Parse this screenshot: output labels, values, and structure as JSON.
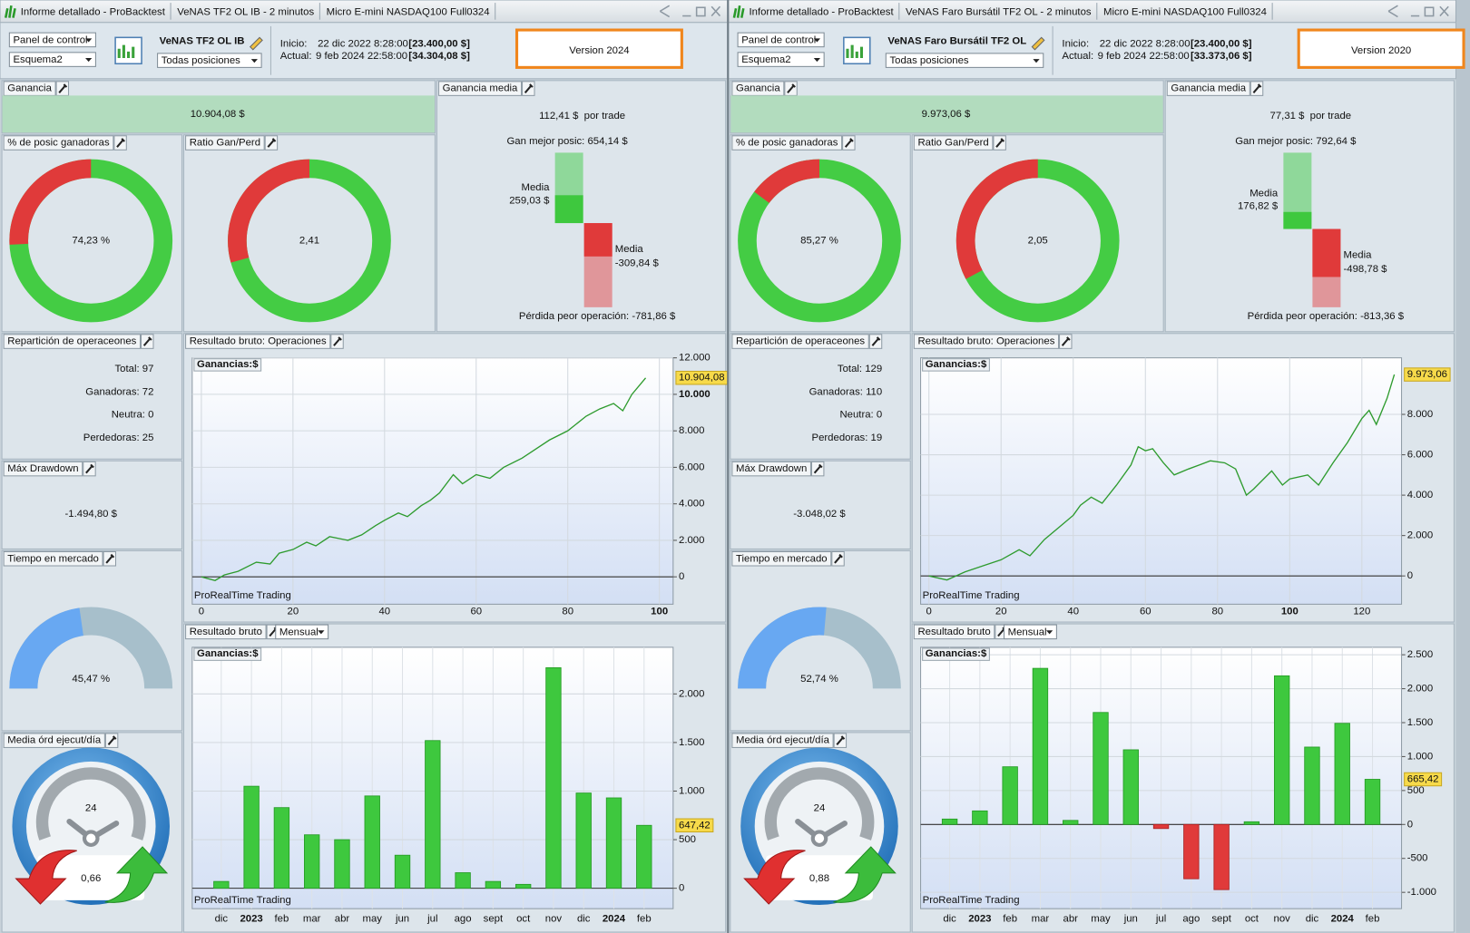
{
  "reports": [
    {
      "tabs": [
        "Informe detallado - ProBacktest",
        "VeNAS TF2 OL IB - 2 minutos",
        "Micro E-mini NASDAQ100 Full0324"
      ],
      "control": "Panel de control",
      "scheme": "Esquema2",
      "system": "VeNAS TF2 OL IB",
      "positions": "Todas posiciones",
      "start_label": "Inicio:",
      "start_date": "22 dic 2022 8:28:00",
      "start_capital": "[23.400,00 $]",
      "current_label": "Actual:",
      "current_date": "9 feb 2024 22:58:00",
      "current_capital": "[34.304,08 $]",
      "version": "Version 2024",
      "gain": {
        "title": "Ganancia",
        "value": "10.904,08 $"
      },
      "avg_gain": {
        "title": "Ganancia media",
        "value": "112,41 $",
        "unit": "por trade",
        "best": {
          "value": 654.14,
          "label": "Gan mejor posic: 654,14 $"
        },
        "avg_win_label": "Media",
        "avg_win": {
          "value": 259.03,
          "label": "259,03 $"
        },
        "avg_loss_label": "Media",
        "avg_loss": {
          "value": -309.84,
          "label": "-309,84 $"
        },
        "worst": {
          "value": -781.86,
          "label": "Pérdida peor operación: -781,86 $"
        }
      },
      "win_pct": {
        "title": "% de posic ganadoras",
        "value": 74.23,
        "label": "74,23 %"
      },
      "ratio": {
        "title": "Ratio Gan/Perd",
        "value": 2.41,
        "label": "2,41"
      },
      "breakdown": {
        "title": "Repartición de operaceones",
        "lines": [
          "Total: 97",
          "Ganadoras: 72",
          "Neutra: 0",
          "Perdedoras: 25"
        ]
      },
      "drawdown": {
        "title": "Máx Drawdown",
        "value": "-1.494,80 $"
      },
      "time_in_market": {
        "title": "Tiempo en mercado",
        "value": 45.47,
        "label": "45,47 %"
      },
      "orders": {
        "title": "Media órd ejecut/día",
        "icon": "24",
        "value": "0,66"
      },
      "equity": {
        "type": "line",
        "title": "Resultado bruto: Operaciones",
        "legend": "Ganancias:$",
        "watermark": "ProRealTime Trading",
        "color": "#2e9b2e",
        "x": [
          0,
          3,
          5,
          8,
          12,
          15,
          17,
          20,
          23,
          25,
          28,
          32,
          35,
          38,
          40,
          43,
          45,
          48,
          50,
          52,
          55,
          57,
          60,
          63,
          66,
          70,
          73,
          76,
          80,
          84,
          87,
          90,
          92,
          94,
          97
        ],
        "values": [
          0,
          -200,
          100,
          300,
          800,
          700,
          1300,
          1500,
          1900,
          1700,
          2200,
          2000,
          2300,
          2800,
          3100,
          3500,
          3300,
          3900,
          4200,
          4600,
          5600,
          5100,
          5600,
          5400,
          6000,
          6500,
          7000,
          7500,
          8000,
          8800,
          9200,
          9500,
          9100,
          10000,
          10904.08
        ],
        "last_label": "10.904,08",
        "xlim": [
          -2,
          103
        ],
        "xticks": [
          0,
          20,
          40,
          60,
          80,
          100
        ],
        "ylim": [
          -1500,
          12000
        ],
        "yticks": [
          0,
          {
            "value": 2000,
            "label": "2.000"
          },
          {
            "value": 4000,
            "label": "4.000"
          },
          {
            "value": 6000,
            "label": "6.000"
          },
          {
            "value": 8000,
            "label": "8.000"
          },
          {
            "value": 10000,
            "label": "10.000"
          },
          {
            "value": 12000,
            "label": "12.000"
          }
        ],
        "grid": true
      },
      "monthly": {
        "type": "bar",
        "title": "Resultado bruto",
        "period": "Mensual",
        "legend": "Ganancias:$",
        "watermark": "ProRealTime Trading",
        "positive_color": "#3ec83e",
        "negative_color": "#e03a3a",
        "categories": [
          "dic",
          "2023",
          "feb",
          "mar",
          "abr",
          "may",
          "jun",
          "jul",
          "ago",
          "sept",
          "oct",
          "nov",
          "dic",
          "2024",
          "feb"
        ],
        "values": [
          70,
          1050,
          830,
          550,
          500,
          950,
          340,
          1520,
          160,
          70,
          40,
          2270,
          980,
          930,
          647.42
        ],
        "last_label": "647,42",
        "ylim": [
          -210,
          2480
        ],
        "yticks": [
          0,
          500,
          {
            "value": 1000,
            "label": "1.000"
          },
          {
            "value": 1500,
            "label": "1.500"
          },
          {
            "value": 2000,
            "label": "2.000"
          }
        ],
        "grid": true
      }
    },
    {
      "tabs": [
        "Informe detallado - ProBacktest",
        "VeNAS Faro Bursátil TF2 OL - 2 minutos",
        "Micro E-mini NASDAQ100 Full0324"
      ],
      "control": "Panel de control",
      "scheme": "Esquema2",
      "system": "VeNAS Faro Bursátil TF2 OL",
      "positions": "Todas posiciones",
      "start_label": "Inicio:",
      "start_date": "22 dic 2022 8:28:00",
      "start_capital": "[23.400,00 $]",
      "current_label": "Actual:",
      "current_date": "9 feb 2024 22:58:00",
      "current_capital": "[33.373,06 $]",
      "version": "Version 2020",
      "gain": {
        "title": "Ganancia",
        "value": "9.973,06 $"
      },
      "avg_gain": {
        "title": "Ganancia media",
        "value": "77,31 $",
        "unit": "por trade",
        "best": {
          "value": 792.64,
          "label": "Gan mejor posic: 792,64 $"
        },
        "avg_win_label": "Media",
        "avg_win": {
          "value": 176.82,
          "label": "176,82 $"
        },
        "avg_loss_label": "Media",
        "avg_loss": {
          "value": -498.78,
          "label": "-498,78 $"
        },
        "worst": {
          "value": -813.36,
          "label": "Pérdida peor operación: -813,36 $"
        }
      },
      "win_pct": {
        "title": "% de posic ganadoras",
        "value": 85.27,
        "label": "85,27 %"
      },
      "ratio": {
        "title": "Ratio Gan/Perd",
        "value": 2.05,
        "label": "2,05"
      },
      "breakdown": {
        "title": "Repartición de operaceones",
        "lines": [
          "Total: 129",
          "Ganadoras: 110",
          "Neutra: 0",
          "Perdedoras: 19"
        ]
      },
      "drawdown": {
        "title": "Máx Drawdown",
        "value": "-3.048,02 $"
      },
      "time_in_market": {
        "title": "Tiempo en mercado",
        "value": 52.74,
        "label": "52,74 %"
      },
      "orders": {
        "title": "Media órd ejecut/día",
        "icon": "24",
        "value": "0,88"
      },
      "equity": {
        "type": "line",
        "title": "Resultado bruto: Operaciones",
        "legend": "Ganancias:$",
        "watermark": "ProRealTime Trading",
        "color": "#2e9b2e",
        "x": [
          0,
          5,
          10,
          15,
          20,
          25,
          28,
          32,
          36,
          40,
          42,
          45,
          48,
          52,
          56,
          58,
          60,
          62,
          65,
          68,
          72,
          75,
          78,
          82,
          85,
          88,
          90,
          95,
          98,
          100,
          105,
          108,
          112,
          116,
          120,
          122,
          124,
          127,
          129
        ],
        "values": [
          0,
          -200,
          200,
          500,
          800,
          1300,
          1000,
          1800,
          2400,
          3000,
          3500,
          3900,
          3600,
          4500,
          5500,
          6400,
          6200,
          6300,
          5600,
          5000,
          5300,
          5500,
          5700,
          5600,
          5300,
          4000,
          4300,
          5200,
          4500,
          4800,
          5000,
          4500,
          5600,
          6600,
          7800,
          8200,
          7500,
          8800,
          9973.06
        ],
        "last_label": "9.973,06",
        "xlim": [
          -2.3,
          131
        ],
        "xticks": [
          0,
          20,
          40,
          60,
          80,
          100,
          120
        ],
        "ylim": [
          -1400,
          10800
        ],
        "yticks": [
          0,
          {
            "value": 2000,
            "label": "2.000"
          },
          {
            "value": 4000,
            "label": "4.000"
          },
          {
            "value": 6000,
            "label": "6.000"
          },
          {
            "value": 8000,
            "label": "8.000"
          }
        ],
        "grid": true
      },
      "monthly": {
        "type": "bar",
        "title": "Resultado bruto",
        "period": "Mensual",
        "legend": "Ganancias:$",
        "watermark": "ProRealTime Trading",
        "positive_color": "#3ec83e",
        "negative_color": "#e03a3a",
        "categories": [
          "dic",
          "2023",
          "feb",
          "mar",
          "abr",
          "may",
          "jun",
          "jul",
          "ago",
          "sept",
          "oct",
          "nov",
          "dic",
          "2024",
          "feb"
        ],
        "values": [
          80,
          200,
          850,
          2300,
          60,
          1650,
          1100,
          -60,
          -800,
          -960,
          40,
          2190,
          1140,
          1490,
          665.42
        ],
        "last_label": "665,42",
        "ylim": [
          -1240,
          2610
        ],
        "yticks": [
          {
            "value": -1000,
            "label": "-1.000"
          },
          -500,
          0,
          500,
          {
            "value": 1000,
            "label": "1.000"
          },
          {
            "value": 1500,
            "label": "1.500"
          },
          {
            "value": 2000,
            "label": "2.000"
          },
          {
            "value": 2500,
            "label": "2.500"
          }
        ],
        "grid": true
      }
    }
  ]
}
